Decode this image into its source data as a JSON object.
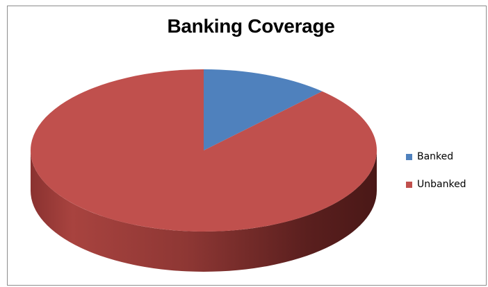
{
  "chart_data": {
    "type": "pie",
    "title": "Banking Coverage",
    "categories": [
      "Banked",
      "Unbanked"
    ],
    "values": [
      12,
      88
    ],
    "colors": [
      "#4f81bd",
      "#c0504d"
    ],
    "legend_position": "right",
    "style": "3d"
  }
}
